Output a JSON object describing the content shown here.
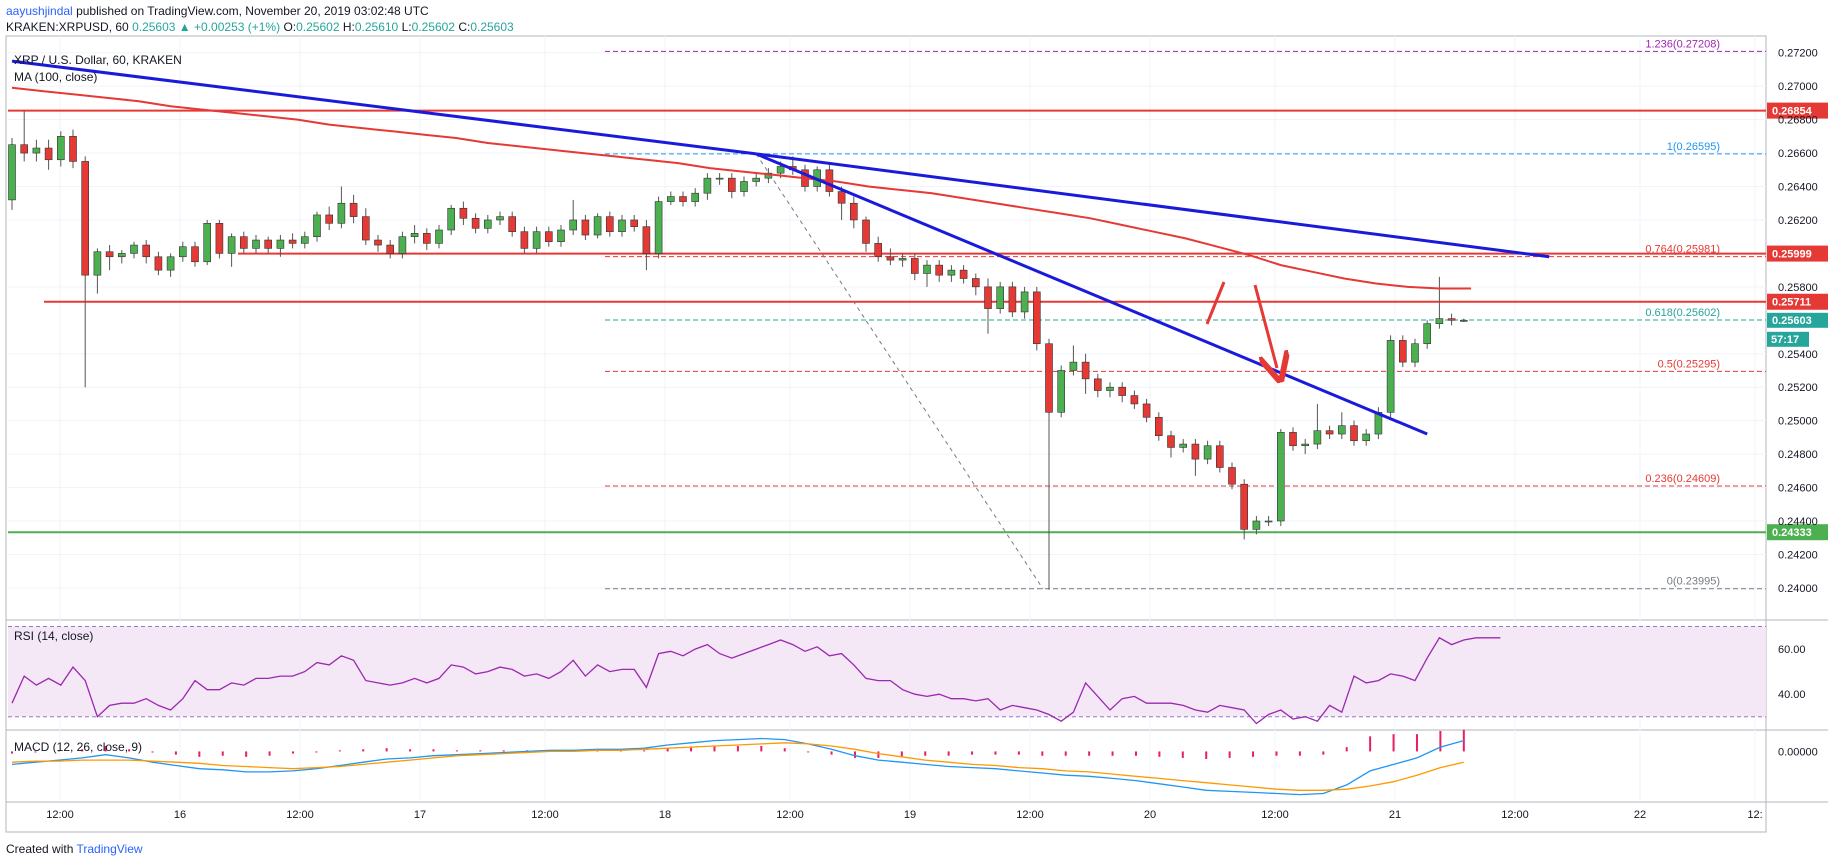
{
  "header": {
    "author": "aayushjindal",
    "published": "published on TradingView.com, November 20, 2019 03:02:48 UTC"
  },
  "ticker": {
    "symbol": "KRAKEN:XRPUSD, 60",
    "last": "0.25603",
    "change": "+0.00253 (+1%)",
    "o_label": "O:",
    "o": "0.25602",
    "h_label": "H:",
    "h": "0.25610",
    "l_label": "L:",
    "l": "0.25602",
    "c_label": "C:",
    "c": "0.25603"
  },
  "footer": {
    "created_with": "Created with",
    "brand": "TradingView"
  },
  "colors": {
    "up": "#4caf50",
    "down": "#e53935",
    "ma": "#e53935",
    "trend": "#1a1adb",
    "support": "#4caf50",
    "resistance": "#e53935",
    "rsi": "#9c27b0",
    "macd": "#2196f3",
    "signal": "#ff9800",
    "hist": "#e91e63",
    "fib_top": "#9c27b0",
    "fib_one": "#2196f3",
    "fib_mid": "#e53935",
    "fib_618": "#26a69a",
    "fib_zero": "#787b86"
  },
  "chart_data": [
    {
      "type": "candlestick",
      "title": "XRP / U.S. Dollar, 60, KRAKEN",
      "indicator": "MA (100, close)",
      "ylim": [
        0.2382,
        0.273
      ],
      "y_ticks": [
        "0.27200",
        "0.27000",
        "0.26800",
        "0.26600",
        "0.26400",
        "0.26200",
        "0.25800",
        "0.25400",
        "0.25200",
        "0.25000",
        "0.24800",
        "0.24600",
        "0.24400",
        "0.24200",
        "0.24000"
      ],
      "x_ticks": [
        "12:00",
        "16",
        "12:00",
        "17",
        "12:00",
        "18",
        "12:00",
        "19",
        "12:00",
        "20",
        "12:00",
        "21",
        "12:00",
        "22",
        "12:"
      ],
      "candles": [
        [
          0.2632,
          0.2665,
          0.2626,
          0.2669
        ],
        [
          0.2665,
          0.266,
          0.2655,
          0.2685
        ],
        [
          0.266,
          0.2663,
          0.2655,
          0.2668
        ],
        [
          0.2663,
          0.2656,
          0.265,
          0.2668
        ],
        [
          0.2656,
          0.267,
          0.2652,
          0.2673
        ],
        [
          0.267,
          0.2655,
          0.2651,
          0.2674
        ],
        [
          0.2655,
          0.2587,
          0.252,
          0.2658
        ],
        [
          0.2587,
          0.2601,
          0.2576,
          0.2603
        ],
        [
          0.2601,
          0.2598,
          0.259,
          0.2605
        ],
        [
          0.2598,
          0.26,
          0.2594,
          0.2602
        ],
        [
          0.26,
          0.2605,
          0.2597,
          0.2607
        ],
        [
          0.2605,
          0.2598,
          0.2594,
          0.2608
        ],
        [
          0.2598,
          0.259,
          0.2587,
          0.2601
        ],
        [
          0.259,
          0.2598,
          0.2586,
          0.26
        ],
        [
          0.2598,
          0.2604,
          0.2595,
          0.2607
        ],
        [
          0.2604,
          0.2595,
          0.2592,
          0.2607
        ],
        [
          0.2595,
          0.2618,
          0.2593,
          0.262
        ],
        [
          0.2618,
          0.26,
          0.2597,
          0.262
        ],
        [
          0.26,
          0.261,
          0.2592,
          0.2612
        ],
        [
          0.261,
          0.2603,
          0.26,
          0.2613
        ],
        [
          0.2603,
          0.2608,
          0.26,
          0.2611
        ],
        [
          0.2608,
          0.2603,
          0.26,
          0.261
        ],
        [
          0.2603,
          0.2608,
          0.2598,
          0.2611
        ],
        [
          0.2608,
          0.2606,
          0.2603,
          0.2612
        ],
        [
          0.2606,
          0.261,
          0.2603,
          0.2613
        ],
        [
          0.261,
          0.2623,
          0.2607,
          0.2625
        ],
        [
          0.2623,
          0.2618,
          0.2614,
          0.2628
        ],
        [
          0.2618,
          0.263,
          0.2615,
          0.264
        ],
        [
          0.263,
          0.2622,
          0.2618,
          0.2635
        ],
        [
          0.2622,
          0.2608,
          0.2605,
          0.2627
        ],
        [
          0.2608,
          0.2605,
          0.2601,
          0.2611
        ],
        [
          0.2605,
          0.26,
          0.2597,
          0.2608
        ],
        [
          0.26,
          0.261,
          0.2597,
          0.2613
        ],
        [
          0.261,
          0.2612,
          0.2606,
          0.2617
        ],
        [
          0.2612,
          0.2606,
          0.2602,
          0.2615
        ],
        [
          0.2606,
          0.2614,
          0.2603,
          0.2617
        ],
        [
          0.2614,
          0.2627,
          0.2611,
          0.2629
        ],
        [
          0.2627,
          0.2621,
          0.2617,
          0.2631
        ],
        [
          0.2621,
          0.2615,
          0.2612,
          0.2624
        ],
        [
          0.2615,
          0.262,
          0.2612,
          0.2623
        ],
        [
          0.262,
          0.2622,
          0.2617,
          0.2625
        ],
        [
          0.2622,
          0.2613,
          0.261,
          0.2625
        ],
        [
          0.2613,
          0.2603,
          0.26,
          0.2616
        ],
        [
          0.2603,
          0.2613,
          0.26,
          0.2616
        ],
        [
          0.2613,
          0.2607,
          0.2604,
          0.2616
        ],
        [
          0.2607,
          0.2614,
          0.2604,
          0.2617
        ],
        [
          0.2614,
          0.262,
          0.2611,
          0.2632
        ],
        [
          0.262,
          0.2611,
          0.2608,
          0.2623
        ],
        [
          0.2611,
          0.2622,
          0.2609,
          0.2624
        ],
        [
          0.2622,
          0.2613,
          0.261,
          0.2625
        ],
        [
          0.2613,
          0.262,
          0.261,
          0.2623
        ],
        [
          0.262,
          0.2616,
          0.2613,
          0.2623
        ],
        [
          0.2616,
          0.26,
          0.259,
          0.262
        ],
        [
          0.26,
          0.2631,
          0.2597,
          0.2634
        ],
        [
          0.2631,
          0.2634,
          0.2629,
          0.2637
        ],
        [
          0.2634,
          0.2631,
          0.2628,
          0.2637
        ],
        [
          0.2631,
          0.2636,
          0.2628,
          0.2639
        ],
        [
          0.2636,
          0.2645,
          0.2632,
          0.2648
        ],
        [
          0.2645,
          0.2645,
          0.2641,
          0.2648
        ],
        [
          0.2645,
          0.2637,
          0.2633,
          0.2648
        ],
        [
          0.2637,
          0.2643,
          0.2634,
          0.2646
        ],
        [
          0.2643,
          0.2645,
          0.264,
          0.2648
        ],
        [
          0.2645,
          0.2648,
          0.2642,
          0.2651
        ],
        [
          0.2648,
          0.2652,
          0.2645,
          0.2655
        ],
        [
          0.2652,
          0.265,
          0.2647,
          0.2658
        ],
        [
          0.265,
          0.264,
          0.2637,
          0.2653
        ],
        [
          0.264,
          0.265,
          0.2637,
          0.2652
        ],
        [
          0.265,
          0.2637,
          0.2634,
          0.2653
        ],
        [
          0.2637,
          0.263,
          0.262,
          0.264
        ],
        [
          0.263,
          0.262,
          0.2615,
          0.2634
        ],
        [
          0.262,
          0.2606,
          0.2601,
          0.2622
        ],
        [
          0.2606,
          0.2598,
          0.2595,
          0.261
        ],
        [
          0.2598,
          0.2596,
          0.2593,
          0.2603
        ],
        [
          0.2596,
          0.2597,
          0.2592,
          0.26
        ],
        [
          0.2597,
          0.2588,
          0.2584,
          0.26
        ],
        [
          0.2588,
          0.2593,
          0.258,
          0.2596
        ],
        [
          0.2593,
          0.2587,
          0.2583,
          0.2596
        ],
        [
          0.2587,
          0.259,
          0.2583,
          0.2593
        ],
        [
          0.259,
          0.2585,
          0.2582,
          0.2593
        ],
        [
          0.2585,
          0.258,
          0.2575,
          0.2588
        ],
        [
          0.258,
          0.2567,
          0.2552,
          0.2585
        ],
        [
          0.2567,
          0.258,
          0.2564,
          0.2583
        ],
        [
          0.258,
          0.2565,
          0.2562,
          0.2583
        ],
        [
          0.2565,
          0.2577,
          0.2561,
          0.258
        ],
        [
          0.2577,
          0.2546,
          0.2542,
          0.258
        ],
        [
          0.2546,
          0.2505,
          0.2399,
          0.2549
        ],
        [
          0.2505,
          0.253,
          0.2502,
          0.2533
        ],
        [
          0.253,
          0.2535,
          0.2527,
          0.2545
        ],
        [
          0.2535,
          0.2525,
          0.2516,
          0.254
        ],
        [
          0.2525,
          0.2518,
          0.2514,
          0.2528
        ],
        [
          0.2518,
          0.252,
          0.2514,
          0.2523
        ],
        [
          0.252,
          0.2515,
          0.2511,
          0.2523
        ],
        [
          0.2515,
          0.251,
          0.2507,
          0.2518
        ],
        [
          0.251,
          0.2502,
          0.2499,
          0.2513
        ],
        [
          0.2502,
          0.2491,
          0.2488,
          0.2505
        ],
        [
          0.2491,
          0.2484,
          0.2478,
          0.2494
        ],
        [
          0.2484,
          0.2486,
          0.2481,
          0.2489
        ],
        [
          0.2486,
          0.2477,
          0.2467,
          0.2489
        ],
        [
          0.2477,
          0.2485,
          0.2474,
          0.2488
        ],
        [
          0.2485,
          0.2472,
          0.2469,
          0.2488
        ],
        [
          0.2472,
          0.2462,
          0.2459,
          0.2475
        ],
        [
          0.2462,
          0.2435,
          0.2429,
          0.2465
        ],
        [
          0.2435,
          0.244,
          0.2432,
          0.2443
        ],
        [
          0.244,
          0.244,
          0.2437,
          0.2443
        ],
        [
          0.244,
          0.2493,
          0.2437,
          0.2495
        ],
        [
          0.2493,
          0.2485,
          0.2482,
          0.2496
        ],
        [
          0.2485,
          0.2486,
          0.248,
          0.2489
        ],
        [
          0.2486,
          0.2494,
          0.2483,
          0.251
        ],
        [
          0.2494,
          0.2492,
          0.2489,
          0.2497
        ],
        [
          0.2492,
          0.2497,
          0.2489,
          0.2505
        ],
        [
          0.2497,
          0.2488,
          0.2485,
          0.25
        ],
        [
          0.2488,
          0.2492,
          0.2485,
          0.2495
        ],
        [
          0.2492,
          0.2505,
          0.2489,
          0.2508
        ],
        [
          0.2505,
          0.2548,
          0.2502,
          0.2551
        ],
        [
          0.2548,
          0.2535,
          0.2532,
          0.2551
        ],
        [
          0.2535,
          0.2546,
          0.2532,
          0.2549
        ],
        [
          0.2546,
          0.2558,
          0.2543,
          0.256
        ],
        [
          0.2558,
          0.2561,
          0.2555,
          0.2586
        ],
        [
          0.2561,
          0.256,
          0.2557,
          0.2564
        ],
        [
          0.256,
          0.256,
          0.2559,
          0.2561
        ]
      ],
      "ma100": [
        0.2699,
        0.2697,
        0.2695,
        0.2693,
        0.2691,
        0.2688,
        0.2686,
        0.2684,
        0.2682,
        0.268,
        0.2677,
        0.2675,
        0.2673,
        0.2671,
        0.2669,
        0.2666,
        0.2664,
        0.2662,
        0.266,
        0.2658,
        0.2656,
        0.2654,
        0.2651,
        0.2649,
        0.2647,
        0.2645,
        0.2643,
        0.264,
        0.2638,
        0.2636,
        0.2633,
        0.263,
        0.2627,
        0.2624,
        0.2621,
        0.2617,
        0.2613,
        0.2609,
        0.2604,
        0.2599,
        0.2593,
        0.2589,
        0.2585,
        0.2582,
        0.258,
        0.2579,
        0.2579
      ],
      "ma_start_index": 0,
      "ma_step": 2.6,
      "fib_levels": [
        {
          "label": "1.236(0.27208)",
          "value": 0.27208
        },
        {
          "label": "1(0.26595)",
          "value": 0.26595
        },
        {
          "label": "0.764(0.25981)",
          "value": 0.25981
        },
        {
          "label": "0.618(0.25602)",
          "value": 0.25602
        },
        {
          "label": "0.5(0.25295)",
          "value": 0.25295
        },
        {
          "label": "0.236(0.24609)",
          "value": 0.24609
        },
        {
          "label": "0(0.23995)",
          "value": 0.23995
        }
      ],
      "horizontal_levels": [
        {
          "label": "0.26854",
          "value": 0.26854,
          "kind": "resistance"
        },
        {
          "label": "0.25999",
          "value": 0.25999,
          "kind": "resistance"
        },
        {
          "label": "0.25711",
          "value": 0.25711,
          "kind": "resistance"
        },
        {
          "label": "0.24333",
          "value": 0.24333,
          "kind": "support"
        }
      ],
      "last_price": {
        "label": "0.25603",
        "value": 0.25603
      },
      "countdown": "57:17",
      "trend_lines": [
        {
          "from": [
            0,
            0.2715
          ],
          "to": [
            61,
            0.26595
          ]
        },
        {
          "from": [
            61,
            0.26595
          ],
          "to": [
            126,
            0.2598
          ]
        },
        {
          "from": [
            61,
            0.26595
          ],
          "to": [
            116,
            0.2492
          ]
        }
      ]
    },
    {
      "type": "line",
      "title": "RSI (14, close)",
      "ylim": [
        25,
        72
      ],
      "y_ticks": [
        "60.00",
        "40.00"
      ],
      "band": [
        30,
        70
      ],
      "values": [
        36,
        48,
        44,
        47,
        44,
        52,
        46,
        30,
        35,
        36,
        36,
        38,
        35,
        33,
        38,
        46,
        42,
        42,
        45,
        44,
        47,
        47,
        48,
        48,
        50,
        54,
        53,
        57,
        55,
        46,
        45,
        44,
        45,
        47,
        45,
        47,
        53,
        52,
        49,
        50,
        52,
        51,
        48,
        49,
        47,
        50,
        55,
        48,
        53,
        50,
        51,
        51,
        43,
        58,
        59,
        57,
        60,
        62,
        58,
        56,
        58,
        60,
        62,
        64,
        62,
        59,
        61,
        57,
        58,
        53,
        47,
        46,
        46,
        42,
        40,
        39,
        40,
        38,
        38,
        37,
        38,
        33,
        35,
        34,
        33,
        31,
        28,
        32,
        45,
        39,
        33,
        38,
        39,
        36,
        36,
        36,
        35,
        33,
        32,
        35,
        34,
        33,
        27,
        31,
        33,
        29,
        30,
        28,
        35,
        32,
        48,
        45,
        46,
        49,
        48,
        46,
        56,
        65,
        62,
        64,
        65,
        65,
        65
      ]
    },
    {
      "type": "line",
      "title": "MACD (12, 26, close, 9)",
      "ylim": [
        -0.0045,
        0.0018
      ],
      "y_ticks": [
        "0.00000"
      ],
      "macd": [
        -0.0012,
        -0.001,
        -0.0008,
        -0.0006,
        -0.0003,
        -0.0006,
        -0.001,
        -0.0013,
        -0.0016,
        -0.0017,
        -0.0019,
        -0.0019,
        -0.0018,
        -0.0016,
        -0.0013,
        -0.001,
        -0.0007,
        -0.0006,
        -0.0004,
        -0.0003,
        -0.0002,
        -0.0001,
        0.0,
        0.0001,
        0.0001,
        0.0002,
        0.0002,
        0.0003,
        0.0006,
        0.0008,
        0.001,
        0.0011,
        0.0012,
        0.0011,
        0.0007,
        0.0002,
        -0.0004,
        -0.0008,
        -0.001,
        -0.0012,
        -0.0014,
        -0.0015,
        -0.0016,
        -0.0018,
        -0.002,
        -0.0022,
        -0.0023,
        -0.0025,
        -0.0027,
        -0.003,
        -0.0033,
        -0.0036,
        -0.0037,
        -0.0038,
        -0.0039,
        -0.004,
        -0.0039,
        -0.0031,
        -0.0018,
        -0.0012,
        -0.0006,
        0.0004,
        0.001
      ],
      "signal": [
        -0.001,
        -0.0009,
        -0.0009,
        -0.0008,
        -0.0008,
        -0.0008,
        -0.0009,
        -0.001,
        -0.0011,
        -0.0013,
        -0.0014,
        -0.0015,
        -0.0016,
        -0.0015,
        -0.0014,
        -0.0012,
        -0.001,
        -0.0008,
        -0.0006,
        -0.0004,
        -0.0003,
        -0.0002,
        -0.0001,
        0.0,
        0.0,
        0.0001,
        0.0001,
        0.0002,
        0.0003,
        0.0004,
        0.0005,
        0.0006,
        0.0007,
        0.0008,
        0.0007,
        0.0005,
        0.0002,
        -0.0002,
        -0.0005,
        -0.0008,
        -0.001,
        -0.0012,
        -0.0013,
        -0.0015,
        -0.0016,
        -0.0018,
        -0.0019,
        -0.0021,
        -0.0023,
        -0.0025,
        -0.0027,
        -0.0029,
        -0.0031,
        -0.0033,
        -0.0035,
        -0.0036,
        -0.0036,
        -0.0035,
        -0.0032,
        -0.0028,
        -0.0022,
        -0.0015,
        -0.001
      ]
    }
  ]
}
